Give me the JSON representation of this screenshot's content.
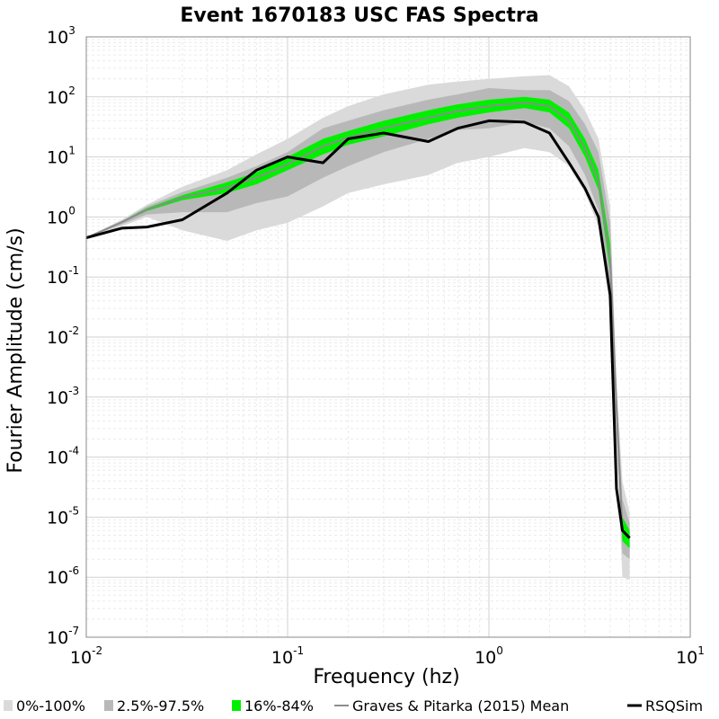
{
  "chart_data": {
    "type": "line",
    "title": "Event 1670183 USC FAS Spectra",
    "xlabel": "Frequency (hz)",
    "ylabel": "Fourier Amplitude (cm/s)",
    "x_scale": "log",
    "y_scale": "log",
    "xlim": [
      0.01,
      10
    ],
    "ylim": [
      1e-07,
      1000
    ],
    "grid": true,
    "legend_position": "bottom",
    "x_ticks": [
      {
        "base": "10",
        "exp": "-2",
        "value": 0.01
      },
      {
        "base": "10",
        "exp": "-1",
        "value": 0.1
      },
      {
        "base": "10",
        "exp": "0",
        "value": 1
      },
      {
        "base": "10",
        "exp": "1",
        "value": 10
      }
    ],
    "y_ticks": [
      {
        "base": "10",
        "exp": "3",
        "value": 1000
      },
      {
        "base": "10",
        "exp": "2",
        "value": 100
      },
      {
        "base": "10",
        "exp": "1",
        "value": 10
      },
      {
        "base": "10",
        "exp": "0",
        "value": 1
      },
      {
        "base": "10",
        "exp": "-1",
        "value": 0.1
      },
      {
        "base": "10",
        "exp": "-2",
        "value": 0.01
      },
      {
        "base": "10",
        "exp": "-3",
        "value": 0.001
      },
      {
        "base": "10",
        "exp": "-4",
        "value": 0.0001
      },
      {
        "base": "10",
        "exp": "-5",
        "value": 1e-05
      },
      {
        "base": "10",
        "exp": "-6",
        "value": 1e-06
      },
      {
        "base": "10",
        "exp": "-7",
        "value": 1e-07
      }
    ],
    "x": [
      0.01,
      0.015,
      0.02,
      0.03,
      0.05,
      0.07,
      0.1,
      0.15,
      0.2,
      0.3,
      0.5,
      0.7,
      1.0,
      1.5,
      2.0,
      2.5,
      3.0,
      3.5,
      4.0,
      4.3,
      4.6,
      5.0
    ],
    "bands": [
      {
        "name": "0%-100%",
        "color": "#dadada",
        "lower": [
          0.45,
          0.7,
          1.0,
          0.6,
          0.4,
          0.6,
          0.8,
          1.5,
          2.5,
          3.5,
          5.0,
          8.0,
          10,
          14,
          12,
          7.0,
          2.5,
          0.7,
          0.03,
          0.00015,
          1e-06,
          9e-07
        ],
        "upper": [
          0.45,
          0.9,
          1.6,
          3.2,
          6.0,
          11,
          20,
          45,
          70,
          110,
          160,
          180,
          200,
          220,
          230,
          150,
          60,
          20,
          1.5,
          0.002,
          4e-05,
          1.2e-05
        ]
      },
      {
        "name": "2.5%-97.5%",
        "color": "#b8b8b8",
        "lower": [
          0.45,
          0.75,
          1.1,
          1.2,
          1.2,
          1.7,
          2.2,
          4.5,
          7.0,
          12,
          20,
          28,
          30,
          38,
          30,
          15,
          5.0,
          1.3,
          0.07,
          0.0003,
          2.5e-06,
          2e-06
        ],
        "upper": [
          0.45,
          0.85,
          1.5,
          2.6,
          4.5,
          7.0,
          12,
          30,
          40,
          60,
          90,
          110,
          140,
          130,
          130,
          85,
          35,
          12,
          0.8,
          0.0015,
          2e-05,
          8e-06
        ]
      },
      {
        "name": "16%-84%",
        "color": "#00f000",
        "lower": [
          0.45,
          0.8,
          1.25,
          1.9,
          2.5,
          3.5,
          6.0,
          11,
          16,
          22,
          35,
          45,
          55,
          65,
          55,
          30,
          10,
          2.8,
          0.12,
          0.0005,
          4e-06,
          3e-06
        ],
        "upper": [
          0.45,
          0.85,
          1.4,
          2.3,
          3.8,
          5.5,
          10,
          20,
          27,
          40,
          60,
          75,
          90,
          100,
          90,
          55,
          20,
          6.0,
          0.35,
          0.0009,
          1e-05,
          6e-06
        ]
      }
    ],
    "series": [
      {
        "name": "Graves & Pitarka (2015) Mean",
        "color": "#8c8c8c",
        "values": [
          0.45,
          0.82,
          1.32,
          2.1,
          3.1,
          4.5,
          7.5,
          15,
          21,
          30,
          45,
          58,
          70,
          80,
          70,
          40,
          14,
          4.0,
          0.2,
          0.0007,
          6e-06,
          4.5e-06
        ]
      },
      {
        "name": "RSQSim",
        "color": "#000000",
        "values": [
          0.45,
          0.65,
          0.68,
          0.9,
          2.5,
          6.0,
          10,
          8.0,
          20,
          25,
          18,
          30,
          40,
          38,
          25,
          8.0,
          3.0,
          1.0,
          0.05,
          3e-05,
          6e-06,
          4.5e-06
        ]
      }
    ],
    "legend": [
      {
        "label": "0%-100%",
        "kind": "band",
        "color": "#dadada"
      },
      {
        "label": "2.5%-97.5%",
        "kind": "band",
        "color": "#b8b8b8"
      },
      {
        "label": "16%-84%",
        "kind": "band",
        "color": "#00f000"
      },
      {
        "label": "Graves & Pitarka (2015) Mean",
        "kind": "line",
        "color": "#8c8c8c"
      },
      {
        "label": "RSQSim",
        "kind": "line",
        "color": "#000000"
      }
    ]
  }
}
